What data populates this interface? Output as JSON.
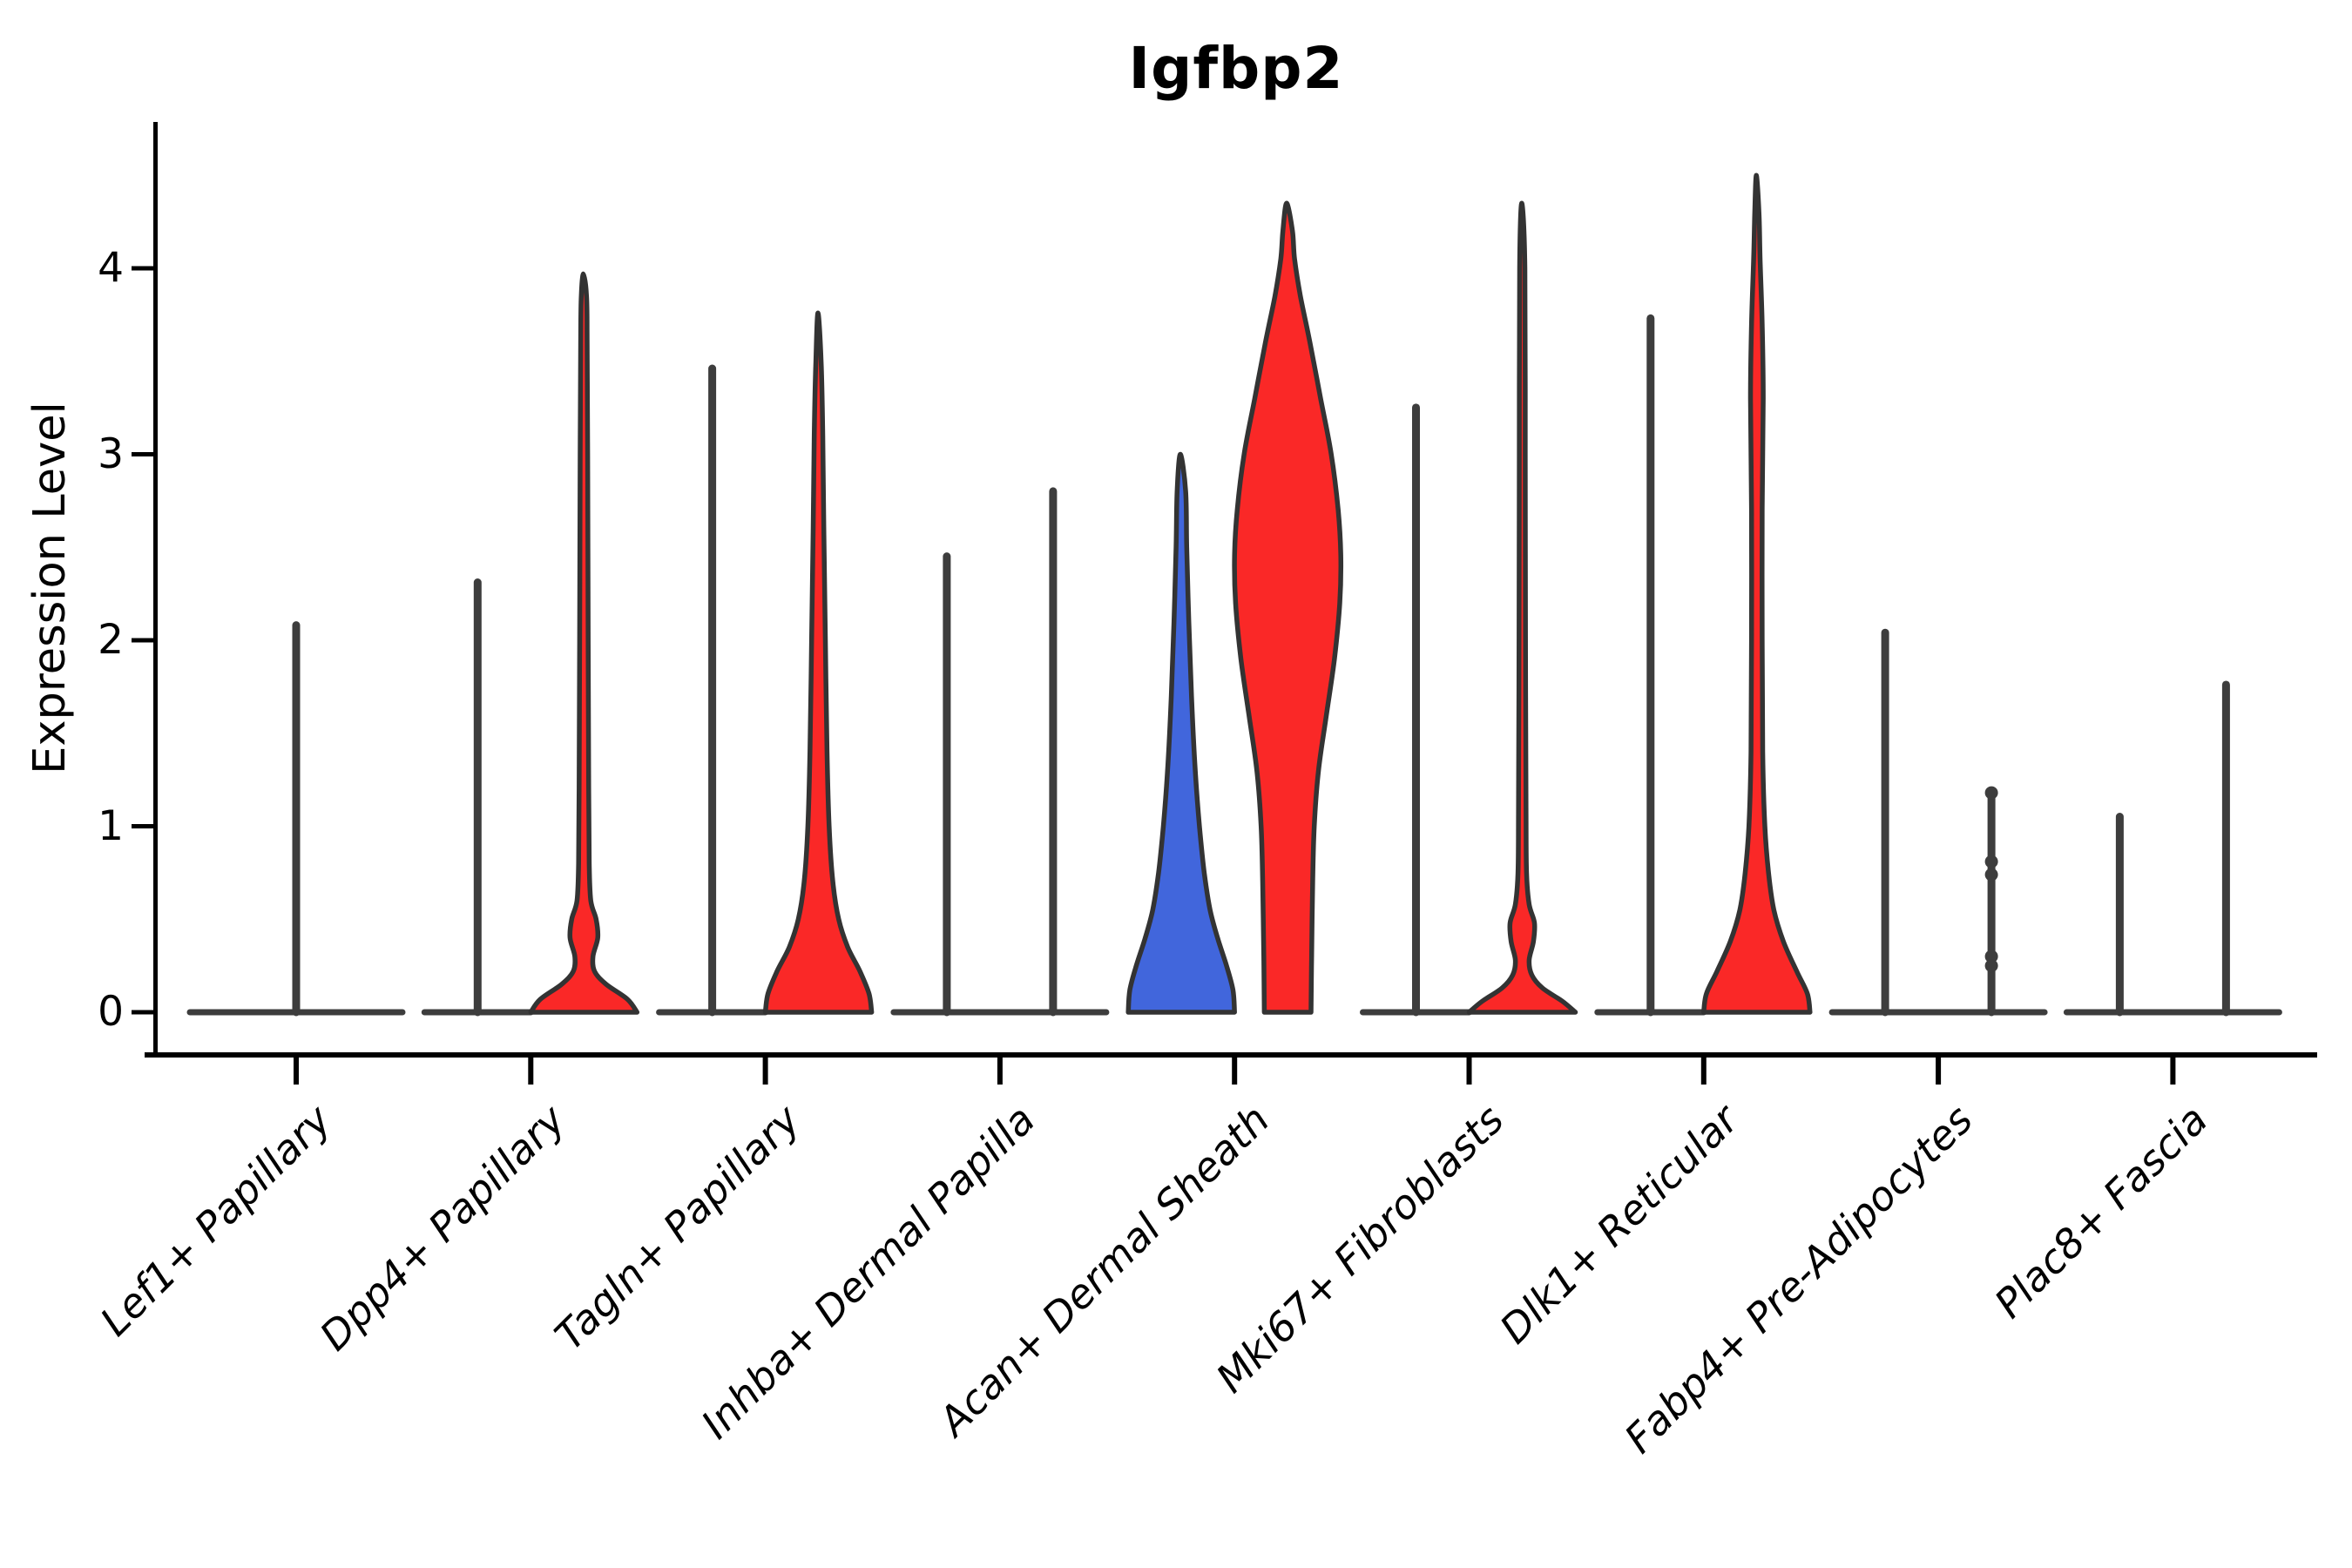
{
  "title": "Igfbp2",
  "y_axis": {
    "label": "Expression Level",
    "ticks": [
      0,
      1,
      2,
      3,
      4
    ]
  },
  "x_axis": {
    "categories": [
      "Lef1+ Papillary",
      "Dpp4+ Papillary",
      "Tagln+ Papillary",
      "Inhba+ Dermal Papilla",
      "Acan+ Dermal Sheath",
      "Mki67+ Fibroblasts",
      "Dlk1+ Reticular",
      "Fabp4+ Pre-Adipocytes",
      "Plac8+ Fascia"
    ]
  },
  "colors": {
    "red": "#fa2827",
    "blue": "#4166dc",
    "outline": "#333333",
    "flat_violin": "#3d3d3d",
    "axis": "#000000",
    "background": "#ffffff"
  },
  "chart_data": {
    "type": "violin",
    "title": "Igfbp2",
    "xlabel": "",
    "ylabel": "Expression Level",
    "ylim": [
      0,
      4.79
    ],
    "yticks": [
      0,
      1,
      2,
      3,
      4
    ],
    "grid": false,
    "legend": "none",
    "categories": [
      "Lef1+ Papillary",
      "Dpp4+ Papillary",
      "Tagln+ Papillary",
      "Inhba+ Dermal Papilla",
      "Acan+ Dermal Sheath",
      "Mki67+ Fibroblasts",
      "Dlk1+ Reticular",
      "Fabp4+ Pre-Adipocytes",
      "Plac8+ Fascia"
    ],
    "violins": [
      {
        "category": "Lef1+ Papillary",
        "position": "center",
        "color": null,
        "style": "flat_spike",
        "max": 2.1,
        "width_scale": 2
      },
      {
        "category": "Dpp4+ Papillary",
        "position": "left",
        "color": "blue",
        "style": "flat_spike",
        "max": 2.33
      },
      {
        "category": "Dpp4+ Papillary",
        "position": "right",
        "color": "red",
        "style": "shaped",
        "max": 3.97,
        "profile": [
          [
            0,
            1.0
          ],
          [
            0.07,
            0.82
          ],
          [
            0.15,
            0.42
          ],
          [
            0.22,
            0.2
          ],
          [
            0.3,
            0.17
          ],
          [
            0.4,
            0.26
          ],
          [
            0.5,
            0.23
          ],
          [
            0.6,
            0.13
          ],
          [
            0.8,
            0.1
          ],
          [
            1.2,
            0.09
          ],
          [
            2.0,
            0.08
          ],
          [
            3.0,
            0.07
          ],
          [
            3.6,
            0.06
          ],
          [
            3.85,
            0.05
          ],
          [
            3.97,
            0.01
          ]
        ]
      },
      {
        "category": "Tagln+ Papillary",
        "position": "left",
        "color": "blue",
        "style": "flat_spike",
        "max": 3.48
      },
      {
        "category": "Tagln+ Papillary",
        "position": "right",
        "color": "red",
        "style": "shaped",
        "max": 3.76,
        "profile": [
          [
            0,
            1.0
          ],
          [
            0.1,
            0.95
          ],
          [
            0.22,
            0.78
          ],
          [
            0.35,
            0.55
          ],
          [
            0.5,
            0.38
          ],
          [
            0.7,
            0.27
          ],
          [
            1.0,
            0.2
          ],
          [
            1.4,
            0.16
          ],
          [
            2.0,
            0.13
          ],
          [
            2.6,
            0.1
          ],
          [
            3.1,
            0.08
          ],
          [
            3.5,
            0.05
          ],
          [
            3.76,
            0.01
          ]
        ]
      },
      {
        "category": "Inhba+ Dermal Papilla",
        "position": "left",
        "color": "blue",
        "style": "flat_spike",
        "max": 2.47
      },
      {
        "category": "Inhba+ Dermal Papilla",
        "position": "right",
        "color": "red",
        "style": "flat_spike",
        "max": 2.82
      },
      {
        "category": "Acan+ Dermal Sheath",
        "position": "left",
        "color": "blue",
        "style": "shaped",
        "max": 3.0,
        "profile": [
          [
            0,
            1.0
          ],
          [
            0.12,
            0.97
          ],
          [
            0.25,
            0.85
          ],
          [
            0.4,
            0.68
          ],
          [
            0.55,
            0.54
          ],
          [
            0.75,
            0.43
          ],
          [
            1.0,
            0.34
          ],
          [
            1.3,
            0.26
          ],
          [
            1.7,
            0.19
          ],
          [
            2.1,
            0.14
          ],
          [
            2.5,
            0.1
          ],
          [
            2.8,
            0.08
          ],
          [
            3.0,
            0.02
          ]
        ]
      },
      {
        "category": "Acan+ Dermal Sheath",
        "position": "right",
        "color": "red",
        "style": "shaped",
        "max": 4.35,
        "profile": [
          [
            0,
            0.44
          ],
          [
            0.3,
            0.45
          ],
          [
            0.7,
            0.47
          ],
          [
            1.0,
            0.5
          ],
          [
            1.3,
            0.58
          ],
          [
            1.6,
            0.73
          ],
          [
            1.9,
            0.88
          ],
          [
            2.2,
            0.98
          ],
          [
            2.45,
            1.0
          ],
          [
            2.7,
            0.95
          ],
          [
            3.0,
            0.82
          ],
          [
            3.3,
            0.62
          ],
          [
            3.6,
            0.42
          ],
          [
            3.85,
            0.24
          ],
          [
            4.05,
            0.13
          ],
          [
            4.2,
            0.09
          ],
          [
            4.35,
            0.02
          ]
        ]
      },
      {
        "category": "Mki67+ Fibroblasts",
        "position": "left",
        "color": "blue",
        "style": "flat_spike",
        "max": 3.27
      },
      {
        "category": "Mki67+ Fibroblasts",
        "position": "right",
        "color": "red",
        "style": "shaped",
        "max": 4.35,
        "profile": [
          [
            0,
            1.0
          ],
          [
            0.06,
            0.75
          ],
          [
            0.13,
            0.38
          ],
          [
            0.2,
            0.18
          ],
          [
            0.28,
            0.13
          ],
          [
            0.38,
            0.21
          ],
          [
            0.48,
            0.23
          ],
          [
            0.58,
            0.13
          ],
          [
            0.75,
            0.08
          ],
          [
            1.1,
            0.07
          ],
          [
            2.0,
            0.06
          ],
          [
            3.0,
            0.055
          ],
          [
            4.0,
            0.05
          ],
          [
            4.35,
            0.01
          ]
        ]
      },
      {
        "category": "Dlk1+ Reticular",
        "position": "left",
        "color": "blue",
        "style": "flat_spike",
        "max": 3.75
      },
      {
        "category": "Dlk1+ Reticular",
        "position": "right",
        "color": "red",
        "style": "shaped",
        "max": 4.5,
        "profile": [
          [
            0,
            1.0
          ],
          [
            0.1,
            0.95
          ],
          [
            0.22,
            0.75
          ],
          [
            0.38,
            0.5
          ],
          [
            0.55,
            0.32
          ],
          [
            0.75,
            0.22
          ],
          [
            1.0,
            0.15
          ],
          [
            1.4,
            0.11
          ],
          [
            2.0,
            0.1
          ],
          [
            2.7,
            0.1
          ],
          [
            3.3,
            0.12
          ],
          [
            3.7,
            0.1
          ],
          [
            4.05,
            0.06
          ],
          [
            4.3,
            0.04
          ],
          [
            4.5,
            0.01
          ]
        ]
      },
      {
        "category": "Fabp4+ Pre-Adipocytes",
        "position": "left",
        "color": "blue",
        "style": "flat_spike",
        "max": 2.06
      },
      {
        "category": "Fabp4+ Pre-Adipocytes",
        "position": "right",
        "color": "red",
        "style": "flat_spike",
        "max": 1.18,
        "points": [
          1.18,
          0.81,
          0.74,
          0.3,
          0.25
        ]
      },
      {
        "category": "Plac8+ Fascia",
        "position": "left",
        "color": "blue",
        "style": "flat_spike",
        "max": 1.07
      },
      {
        "category": "Plac8+ Fascia",
        "position": "right",
        "color": "red",
        "style": "flat_spike",
        "max": 1.78
      }
    ]
  }
}
